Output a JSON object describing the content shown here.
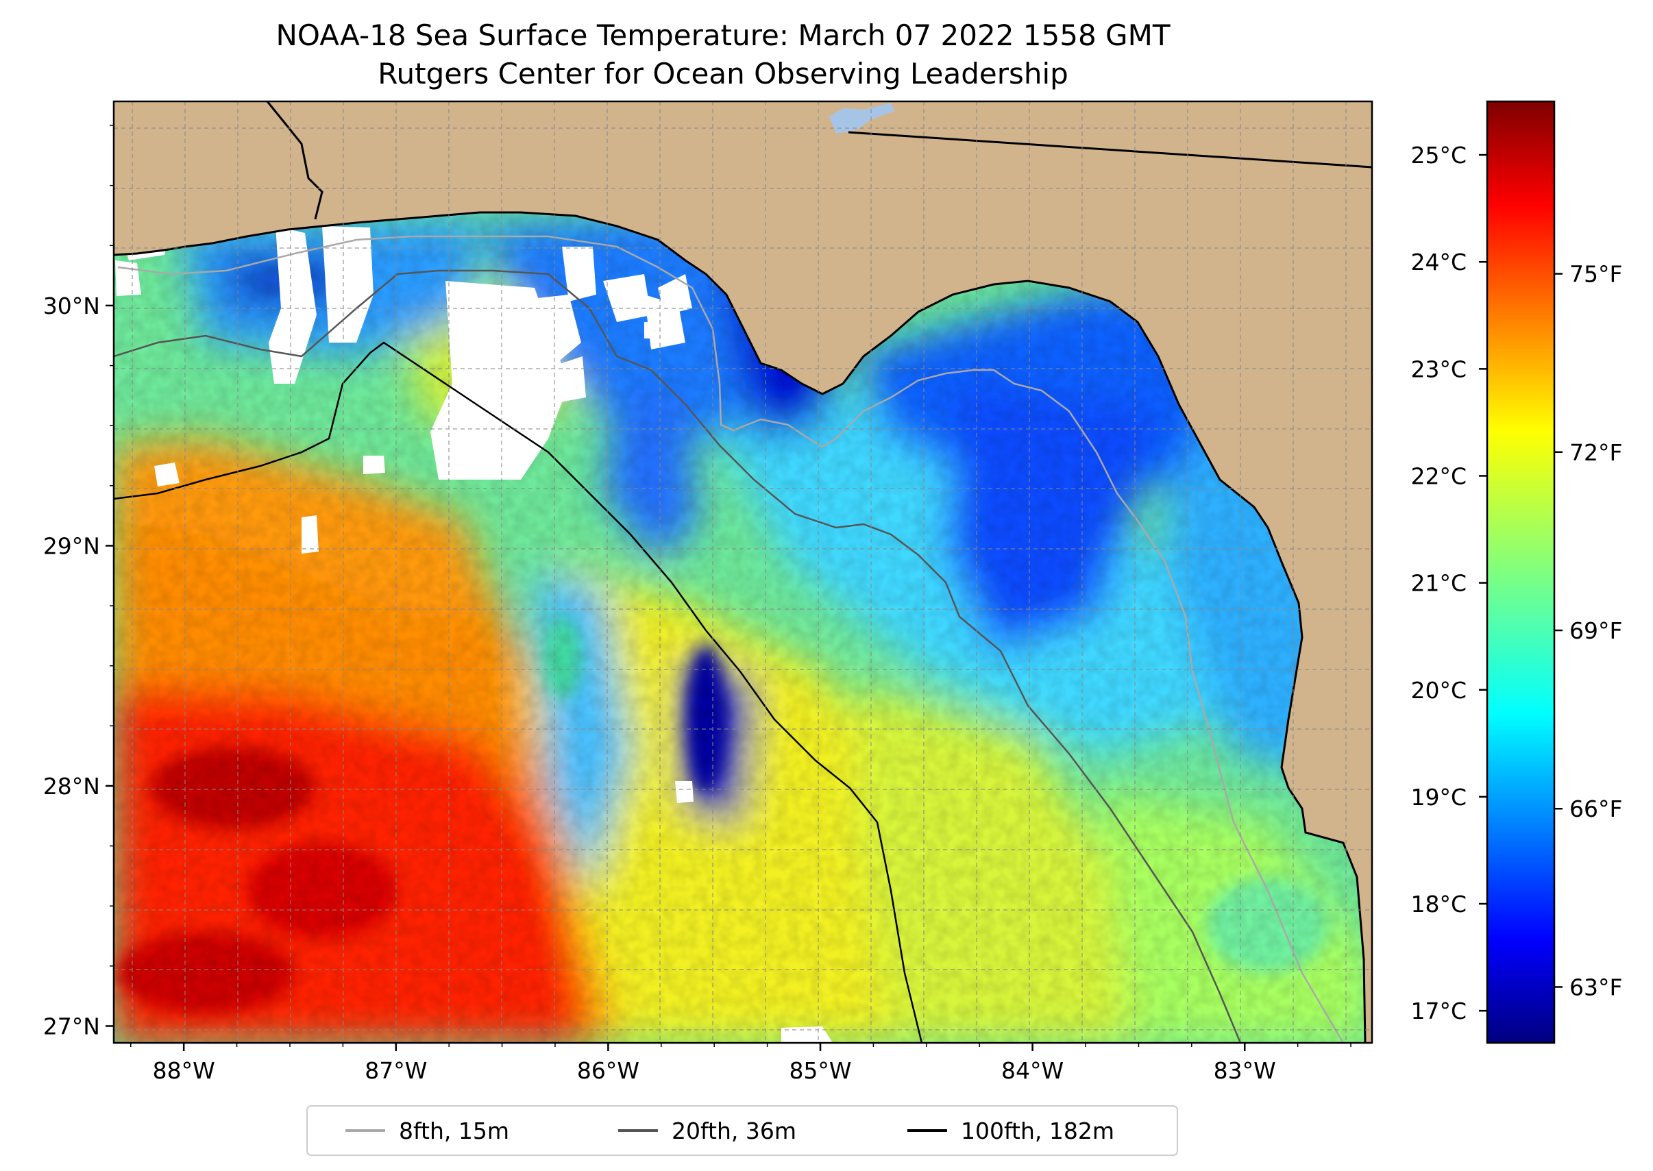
{
  "title": "NOAA-18 Sea Surface Temperature: March 07 2022 1558 GMT",
  "subtitle": "Rutgers Center for Ocean Observing Leadership",
  "map": {
    "lon_range": [
      -88.33,
      -82.4
    ],
    "lat_range": [
      26.93,
      30.85
    ],
    "lon_ticks": [
      {
        "value": -88,
        "label": "88°W"
      },
      {
        "value": -87,
        "label": "87°W"
      },
      {
        "value": -86,
        "label": "86°W"
      },
      {
        "value": -85,
        "label": "85°W"
      },
      {
        "value": -84,
        "label": "84°W"
      },
      {
        "value": -83,
        "label": "83°W"
      }
    ],
    "lat_ticks": [
      {
        "value": 30,
        "label": "30°N"
      },
      {
        "value": 29,
        "label": "29°N"
      },
      {
        "value": 28,
        "label": "28°N"
      },
      {
        "value": 27,
        "label": "27°N"
      }
    ],
    "gridlines": true,
    "colors": {
      "land": "#d2b48c",
      "no_data": "#ffffff",
      "coastline": "#000000",
      "lake": "#a6c4e6"
    }
  },
  "colorbar": {
    "colormap": "jet",
    "celsius_range": [
      16.7,
      25.5
    ],
    "celsius_ticks": [
      {
        "value": 25,
        "label": "25°C"
      },
      {
        "value": 24,
        "label": "24°C"
      },
      {
        "value": 23,
        "label": "23°C"
      },
      {
        "value": 22,
        "label": "22°C"
      },
      {
        "value": 21,
        "label": "21°C"
      },
      {
        "value": 20,
        "label": "20°C"
      },
      {
        "value": 19,
        "label": "19°C"
      },
      {
        "value": 18,
        "label": "18°C"
      },
      {
        "value": 17,
        "label": "17°C"
      }
    ],
    "fahrenheit_ticks": [
      {
        "value": 75,
        "label": "75°F"
      },
      {
        "value": 72,
        "label": "72°F"
      },
      {
        "value": 69,
        "label": "69°F"
      },
      {
        "value": 66,
        "label": "66°F"
      },
      {
        "value": 63,
        "label": "63°F"
      }
    ]
  },
  "legend": {
    "placement": "bottom-center",
    "entries": [
      {
        "label": "8fth, 15m",
        "color": "#a9a9a9"
      },
      {
        "label": "20fth, 36m",
        "color": "#555555"
      },
      {
        "label": "100fth, 182m",
        "color": "#000000"
      }
    ]
  }
}
